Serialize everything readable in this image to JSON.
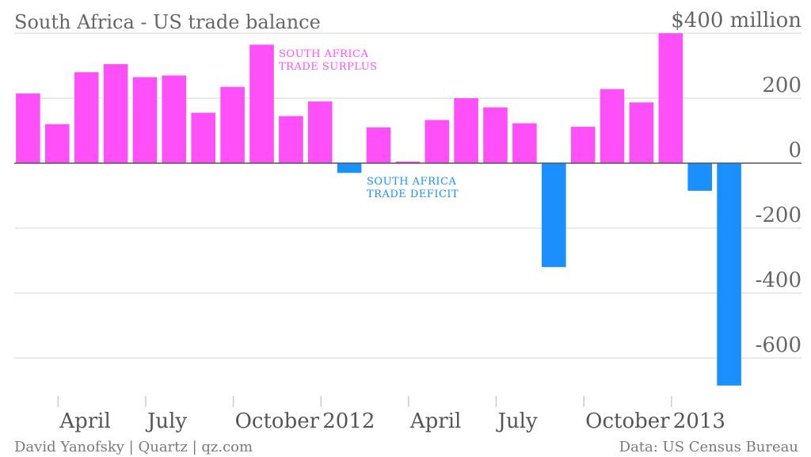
{
  "chart_data": {
    "type": "bar",
    "title": "South Africa - US trade balance",
    "unit_label": "$400 million",
    "ylim": [
      -720,
      420
    ],
    "yticks": [
      {
        "value": 400,
        "label": "$400 million"
      },
      {
        "value": 200,
        "label": "200"
      },
      {
        "value": 0,
        "label": "0"
      },
      {
        "value": -200,
        "label": "-200"
      },
      {
        "value": -400,
        "label": "-400"
      },
      {
        "value": -600,
        "label": "-600"
      }
    ],
    "x_tick_labels": [
      {
        "index": 1.5,
        "label": "April"
      },
      {
        "index": 4.5,
        "label": "July"
      },
      {
        "index": 7.5,
        "label": "October"
      },
      {
        "index": 10.5,
        "label": "2012"
      },
      {
        "index": 13.5,
        "label": "April"
      },
      {
        "index": 16.5,
        "label": "July"
      },
      {
        "index": 19.5,
        "label": "October"
      },
      {
        "index": 22.5,
        "label": "2013"
      }
    ],
    "values": [
      215,
      120,
      280,
      305,
      265,
      270,
      155,
      235,
      365,
      145,
      190,
      -30,
      110,
      5,
      133,
      200,
      172,
      123,
      -320,
      112,
      228,
      187,
      400,
      -85,
      -685
    ],
    "positive_color": "#ff4ff8",
    "negative_color": "#1a90ff",
    "grid": true,
    "annotations": [
      {
        "lines": [
          "SOUTH AFRICA",
          "TRADE SURPLUS"
        ],
        "color": "#ff4ff8"
      },
      {
        "lines": [
          "SOUTH AFRICA",
          "TRADE DEFICIT"
        ],
        "color": "#1a90ff"
      }
    ]
  },
  "footer": {
    "credit": "David Yanofsky | Quartz | qz.com",
    "source": "Data: US Census Bureau"
  }
}
